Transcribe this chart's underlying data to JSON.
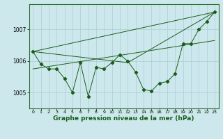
{
  "background_color": "#cce8ec",
  "grid_color": "#aacfd4",
  "line_color": "#1a5c1a",
  "xlabel": "Graphe pression niveau de la mer (hPa)",
  "xlabel_fontsize": 6.5,
  "ylabel_ticks": [
    1005,
    1006,
    1007
  ],
  "xlim": [
    -0.5,
    23.5
  ],
  "ylim": [
    1004.5,
    1007.8
  ],
  "x_ticks": [
    0,
    1,
    2,
    3,
    4,
    5,
    6,
    7,
    8,
    9,
    10,
    11,
    12,
    13,
    14,
    15,
    16,
    17,
    18,
    19,
    20,
    21,
    22,
    23
  ],
  "series1": {
    "x": [
      0,
      1,
      2,
      3,
      4,
      5,
      6,
      7,
      8,
      9,
      10,
      11,
      12,
      13,
      14,
      15,
      16,
      17,
      18,
      19,
      20,
      21,
      22,
      23
    ],
    "y": [
      1006.3,
      1005.9,
      1005.75,
      1005.75,
      1005.45,
      1005.0,
      1005.95,
      1004.88,
      1005.8,
      1005.75,
      1005.95,
      1006.2,
      1006.0,
      1005.65,
      1005.1,
      1005.05,
      1005.3,
      1005.35,
      1005.6,
      1006.55,
      1006.55,
      1007.0,
      1007.25,
      1007.55
    ]
  },
  "line_top": {
    "x": [
      0,
      23
    ],
    "y": [
      1006.3,
      1007.55
    ]
  },
  "line_bottom_left": {
    "x": [
      0,
      12
    ],
    "y": [
      1006.3,
      1005.95
    ]
  },
  "line_bottom_right": {
    "x": [
      12,
      23
    ],
    "y": [
      1005.95,
      1007.55
    ]
  },
  "line_mid": {
    "x": [
      0,
      23
    ],
    "y": [
      1005.75,
      1006.65
    ]
  }
}
